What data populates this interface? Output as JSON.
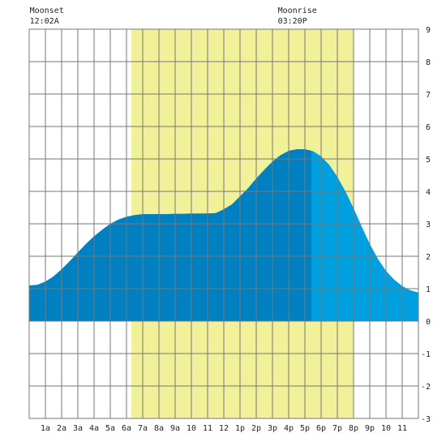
{
  "chart_data": {
    "type": "area",
    "x_unit": "hour of day",
    "y_unit": "ft",
    "xlim": [
      0,
      24
    ],
    "ylim": [
      -3,
      9
    ],
    "x_tick_labels": [
      "1a",
      "2a",
      "3a",
      "4a",
      "5a",
      "6a",
      "7a",
      "8a",
      "9a",
      "10",
      "11",
      "12",
      "1p",
      "2p",
      "3p",
      "4p",
      "5p",
      "6p",
      "7p",
      "8p",
      "9p",
      "10",
      "11"
    ],
    "y_tick_labels": [
      "9",
      "8",
      "7",
      "6",
      "5",
      "4",
      "3",
      "2",
      "1",
      "0",
      "-1",
      "-2",
      "-3"
    ],
    "daylight": {
      "start_hour": 6.3,
      "end_hour": 20.0,
      "color": "#f1f19a"
    },
    "moon_events": [
      {
        "title": "Moonset",
        "time": "12:02A",
        "hour": 0.03
      },
      {
        "title": "Moonrise",
        "time": "03:20P",
        "hour": 15.33
      }
    ],
    "current_time_split_hour": 17.4,
    "series": [
      {
        "colors": {
          "past": "#0080c0",
          "future": "#00a0e0"
        },
        "x": [
          0,
          0.5,
          1,
          1.5,
          2,
          2.5,
          3,
          3.5,
          4,
          4.5,
          5,
          5.5,
          6,
          6.5,
          7,
          7.5,
          8,
          8.5,
          9,
          9.5,
          10,
          10.5,
          11,
          11.5,
          12,
          12.5,
          13,
          13.5,
          14,
          14.5,
          15,
          15.5,
          16,
          16.5,
          17,
          17.5,
          18,
          18.5,
          19,
          19.5,
          20,
          20.5,
          21,
          21.5,
          22,
          22.5,
          23,
          23.5,
          24
        ],
        "values": [
          1.1,
          1.12,
          1.22,
          1.38,
          1.6,
          1.85,
          2.12,
          2.38,
          2.62,
          2.82,
          3.0,
          3.13,
          3.22,
          3.27,
          3.3,
          3.3,
          3.3,
          3.3,
          3.31,
          3.31,
          3.32,
          3.32,
          3.32,
          3.33,
          3.45,
          3.6,
          3.85,
          4.1,
          4.4,
          4.67,
          4.92,
          5.12,
          5.25,
          5.3,
          5.3,
          5.24,
          5.08,
          4.82,
          4.45,
          4.0,
          3.48,
          2.92,
          2.38,
          1.92,
          1.55,
          1.28,
          1.08,
          0.95,
          0.88
        ]
      }
    ]
  }
}
